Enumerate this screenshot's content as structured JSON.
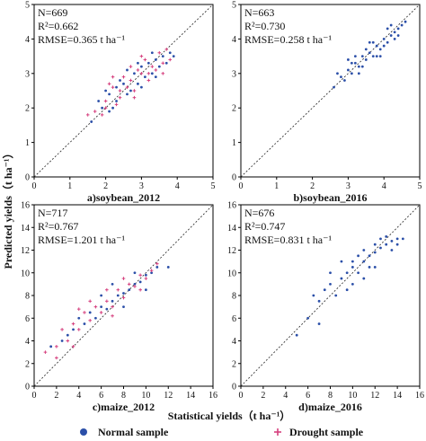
{
  "figure": {
    "ylabel": "Predicted yields（t ha⁻¹）",
    "xlabel": "Statistical yields（t ha⁻¹）",
    "legend": [
      {
        "label": "Normal sample",
        "marker": "dot",
        "color": "#2b4fa8"
      },
      {
        "label": "Drought sample",
        "marker": "plus",
        "color": "#d6417f"
      }
    ]
  },
  "chart_data": [
    {
      "type": "scatter",
      "panel_label": "a)soybean_2012",
      "stats": [
        "N=669",
        "R²=0.662",
        "RMSE=0.365 t ha⁻¹"
      ],
      "xlim": [
        0,
        5
      ],
      "ylim": [
        0,
        5
      ],
      "xticks": [
        0,
        1,
        2,
        3,
        4,
        5
      ],
      "yticks": [
        0,
        1,
        2,
        3,
        4,
        5
      ],
      "reference_line": "1:1",
      "series": [
        {
          "name": "Normal sample",
          "color": "#2b4fa8",
          "points": [
            [
              1.6,
              1.6
            ],
            [
              1.9,
              2.0
            ],
            [
              2.1,
              2.4
            ],
            [
              2.3,
              2.2
            ],
            [
              2.5,
              2.7
            ],
            [
              2.6,
              2.4
            ],
            [
              2.8,
              3.0
            ],
            [
              2.9,
              2.7
            ],
            [
              3.0,
              3.2
            ],
            [
              3.1,
              2.9
            ],
            [
              3.2,
              3.3
            ],
            [
              3.3,
              3.0
            ],
            [
              3.4,
              3.4
            ],
            [
              3.5,
              3.2
            ],
            [
              3.6,
              3.5
            ],
            [
              2.0,
              2.5
            ],
            [
              2.2,
              2.0
            ],
            [
              2.4,
              2.8
            ],
            [
              2.7,
              2.5
            ],
            [
              3.8,
              3.6
            ],
            [
              1.8,
              2.2
            ],
            [
              2.6,
              3.1
            ],
            [
              3.0,
              2.6
            ],
            [
              3.3,
              3.6
            ],
            [
              3.7,
              3.3
            ],
            [
              2.1,
              1.9
            ],
            [
              2.9,
              3.3
            ],
            [
              3.4,
              2.9
            ],
            [
              2.3,
              2.6
            ],
            [
              3.9,
              3.5
            ]
          ]
        },
        {
          "name": "Drought sample",
          "color": "#d6417f",
          "points": [
            [
              1.5,
              1.8
            ],
            [
              1.7,
              1.9
            ],
            [
              2.0,
              2.2
            ],
            [
              2.2,
              2.6
            ],
            [
              2.4,
              2.3
            ],
            [
              2.5,
              2.9
            ],
            [
              2.7,
              2.8
            ],
            [
              2.8,
              2.5
            ],
            [
              3.0,
              3.0
            ],
            [
              3.1,
              3.4
            ],
            [
              3.2,
              2.8
            ],
            [
              3.3,
              3.2
            ],
            [
              3.5,
              3.6
            ],
            [
              3.6,
              3.3
            ],
            [
              3.7,
              3.7
            ],
            [
              2.1,
              2.7
            ],
            [
              2.3,
              2.1
            ],
            [
              2.6,
              2.6
            ],
            [
              2.9,
              3.1
            ],
            [
              3.4,
              3.1
            ],
            [
              1.9,
              1.8
            ],
            [
              2.2,
              2.9
            ],
            [
              2.8,
              2.3
            ],
            [
              3.0,
              3.5
            ],
            [
              3.6,
              3.0
            ],
            [
              2.4,
              2.5
            ],
            [
              2.7,
              3.2
            ],
            [
              3.2,
              3.0
            ],
            [
              3.8,
              3.4
            ],
            [
              2.0,
              2.0
            ]
          ]
        }
      ]
    },
    {
      "type": "scatter",
      "panel_label": "b)soybean_2016",
      "stats": [
        "N=663",
        "R²=0.730",
        "RMSE=0.258 t ha⁻¹"
      ],
      "xlim": [
        0,
        5
      ],
      "ylim": [
        0,
        5
      ],
      "xticks": [
        0,
        1,
        2,
        3,
        4,
        5
      ],
      "yticks": [
        0,
        1,
        2,
        3,
        4,
        5
      ],
      "reference_line": "1:1",
      "series": [
        {
          "name": "Normal sample",
          "color": "#2b4fa8",
          "points": [
            [
              2.6,
              2.6
            ],
            [
              2.8,
              2.9
            ],
            [
              3.0,
              3.1
            ],
            [
              3.1,
              3.0
            ],
            [
              3.2,
              3.3
            ],
            [
              3.3,
              3.2
            ],
            [
              3.4,
              3.5
            ],
            [
              3.5,
              3.4
            ],
            [
              3.6,
              3.6
            ],
            [
              3.7,
              3.5
            ],
            [
              3.8,
              3.8
            ],
            [
              3.9,
              3.7
            ],
            [
              4.0,
              4.0
            ],
            [
              4.1,
              3.9
            ],
            [
              4.2,
              4.1
            ],
            [
              4.3,
              4.2
            ],
            [
              4.4,
              4.3
            ],
            [
              4.5,
              4.4
            ],
            [
              3.0,
              3.4
            ],
            [
              3.3,
              3.0
            ],
            [
              3.6,
              3.9
            ],
            [
              3.9,
              3.5
            ],
            [
              4.1,
              4.3
            ],
            [
              4.3,
              4.0
            ],
            [
              2.9,
              2.8
            ],
            [
              3.5,
              3.7
            ],
            [
              3.8,
              3.5
            ],
            [
              4.0,
              3.8
            ],
            [
              4.2,
              4.4
            ],
            [
              3.2,
              3.5
            ],
            [
              3.4,
              3.2
            ],
            [
              3.7,
              3.9
            ],
            [
              4.4,
              4.1
            ],
            [
              2.7,
              3.0
            ],
            [
              3.1,
              3.3
            ],
            [
              4.6,
              4.5
            ]
          ]
        }
      ]
    },
    {
      "type": "scatter",
      "panel_label": "c)maize_2012",
      "stats": [
        "N=717",
        "R²=0.767",
        "RMSE=1.201 t ha⁻¹"
      ],
      "xlim": [
        0,
        16
      ],
      "ylim": [
        0,
        16
      ],
      "xticks": [
        0,
        2,
        4,
        6,
        8,
        10,
        12,
        14,
        16
      ],
      "yticks": [
        0,
        2,
        4,
        6,
        8,
        10,
        12,
        14,
        16
      ],
      "reference_line": "1:1",
      "series": [
        {
          "name": "Normal sample",
          "color": "#2b4fa8",
          "points": [
            [
              1.5,
              3.5
            ],
            [
              2.5,
              4.0
            ],
            [
              3.5,
              5.0
            ],
            [
              4.5,
              5.5
            ],
            [
              5.0,
              6.5
            ],
            [
              5.5,
              6.0
            ],
            [
              6.0,
              7.0
            ],
            [
              6.5,
              6.8
            ],
            [
              7.0,
              7.5
            ],
            [
              7.5,
              8.0
            ],
            [
              8.0,
              8.2
            ],
            [
              8.5,
              8.5
            ],
            [
              9.0,
              9.0
            ],
            [
              9.5,
              9.2
            ],
            [
              10.0,
              9.8
            ],
            [
              10.5,
              10.0
            ],
            [
              11.0,
              10.5
            ],
            [
              12.0,
              10.5
            ],
            [
              4.0,
              6.0
            ],
            [
              6.0,
              8.0
            ],
            [
              8.0,
              7.0
            ],
            [
              9.0,
              10.0
            ],
            [
              3.0,
              4.5
            ],
            [
              7.0,
              9.0
            ],
            [
              10.0,
              8.5
            ]
          ]
        },
        {
          "name": "Drought sample",
          "color": "#d6417f",
          "points": [
            [
              1.0,
              3.0
            ],
            [
              2.0,
              3.5
            ],
            [
              2.5,
              5.0
            ],
            [
              3.0,
              4.0
            ],
            [
              3.5,
              5.5
            ],
            [
              4.0,
              5.0
            ],
            [
              4.5,
              6.5
            ],
            [
              5.0,
              5.8
            ],
            [
              5.5,
              7.0
            ],
            [
              6.0,
              6.5
            ],
            [
              6.5,
              7.5
            ],
            [
              7.0,
              7.0
            ],
            [
              7.5,
              8.5
            ],
            [
              8.0,
              7.8
            ],
            [
              8.5,
              9.0
            ],
            [
              9.0,
              8.8
            ],
            [
              9.5,
              9.8
            ],
            [
              10.0,
              9.5
            ],
            [
              10.5,
              10.2
            ],
            [
              11.0,
              10.8
            ],
            [
              3.5,
              3.5
            ],
            [
              5.0,
              7.5
            ],
            [
              6.5,
              8.5
            ],
            [
              8.0,
              9.5
            ],
            [
              9.5,
              8.5
            ],
            [
              2.0,
              2.5
            ],
            [
              4.0,
              6.8
            ],
            [
              7.0,
              6.2
            ]
          ]
        }
      ]
    },
    {
      "type": "scatter",
      "panel_label": "d)maize_2016",
      "stats": [
        "N=676",
        "R²=0.747",
        "RMSE=0.831 t ha⁻¹"
      ],
      "xlim": [
        0,
        16
      ],
      "ylim": [
        0,
        16
      ],
      "xticks": [
        0,
        2,
        4,
        6,
        8,
        10,
        12,
        14,
        16
      ],
      "yticks": [
        0,
        2,
        4,
        6,
        8,
        10,
        12,
        14,
        16
      ],
      "reference_line": "1:1",
      "series": [
        {
          "name": "Normal sample",
          "color": "#2b4fa8",
          "points": [
            [
              5.0,
              4.5
            ],
            [
              6.0,
              6.0
            ],
            [
              7.0,
              7.5
            ],
            [
              7.5,
              8.5
            ],
            [
              8.0,
              9.0
            ],
            [
              8.5,
              8.0
            ],
            [
              9.0,
              9.5
            ],
            [
              9.5,
              10.0
            ],
            [
              10.0,
              10.5
            ],
            [
              10.5,
              10.0
            ],
            [
              11.0,
              11.0
            ],
            [
              11.5,
              11.5
            ],
            [
              12.0,
              11.8
            ],
            [
              12.5,
              12.2
            ],
            [
              13.0,
              12.5
            ],
            [
              13.5,
              12.8
            ],
            [
              14.0,
              13.0
            ],
            [
              14.5,
              13.0
            ],
            [
              9.0,
              11.0
            ],
            [
              10.0,
              9.0
            ],
            [
              11.0,
              12.0
            ],
            [
              12.0,
              10.5
            ],
            [
              13.0,
              13.2
            ],
            [
              10.5,
              11.5
            ],
            [
              11.5,
              10.5
            ],
            [
              12.5,
              13.0
            ],
            [
              8.0,
              10.0
            ],
            [
              9.5,
              8.5
            ],
            [
              13.5,
              12.0
            ],
            [
              7.0,
              5.5
            ],
            [
              6.5,
              8.0
            ],
            [
              11.0,
              9.5
            ],
            [
              12.0,
              12.5
            ],
            [
              10.0,
              11.0
            ],
            [
              14.0,
              12.5
            ]
          ]
        }
      ]
    }
  ]
}
